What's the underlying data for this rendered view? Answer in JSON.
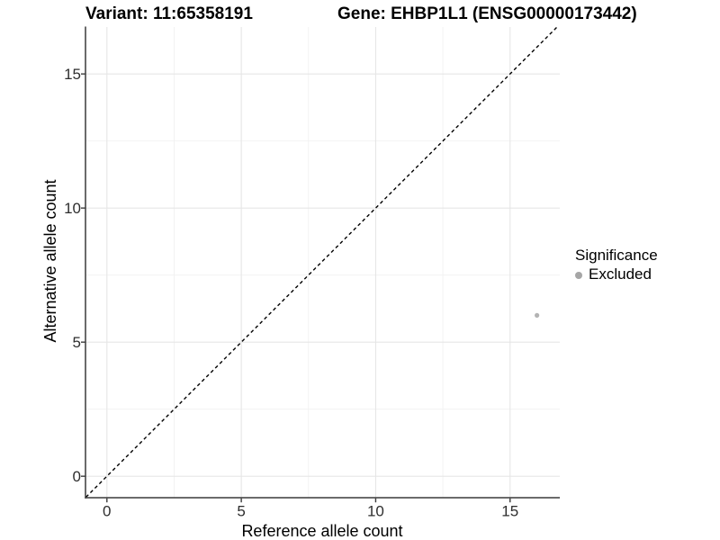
{
  "chart_data": {
    "type": "scatter",
    "titles": {
      "left": "Variant: 11:65358191",
      "right": "Gene: EHBP1L1 (ENSG00000173442)"
    },
    "xlabel": "Reference allele count",
    "ylabel": "Alternative allele count",
    "xlim": [
      -0.78,
      16.85
    ],
    "ylim": [
      -0.8,
      16.75
    ],
    "x_ticks": [
      0,
      5,
      10,
      15
    ],
    "y_ticks": [
      0,
      5,
      10,
      15
    ],
    "x_minor_ticks": [
      2.5,
      7.5,
      12.5
    ],
    "y_minor_ticks": [
      2.5,
      7.5,
      12.5
    ],
    "grid": "major+minor",
    "legend_position": "right",
    "identity_line": {
      "slope": 1,
      "intercept": 0,
      "style": "dashed",
      "color": "#000000"
    },
    "series": [
      {
        "name": "Excluded",
        "color": "#b3b3b3",
        "points": [
          {
            "x": 16,
            "y": 6
          }
        ]
      }
    ],
    "legend": {
      "title": "Significance",
      "items": [
        {
          "label": "Excluded",
          "color": "#a6a6a6"
        }
      ]
    }
  },
  "style": {
    "background": "#ffffff",
    "grid_major_color": "#e6e6e6",
    "grid_minor_color": "#f1f1f1",
    "axis_line_color": "#3a3a3a",
    "tick_label_color": "#2e2e2e",
    "identity_line_color": "#000000"
  }
}
